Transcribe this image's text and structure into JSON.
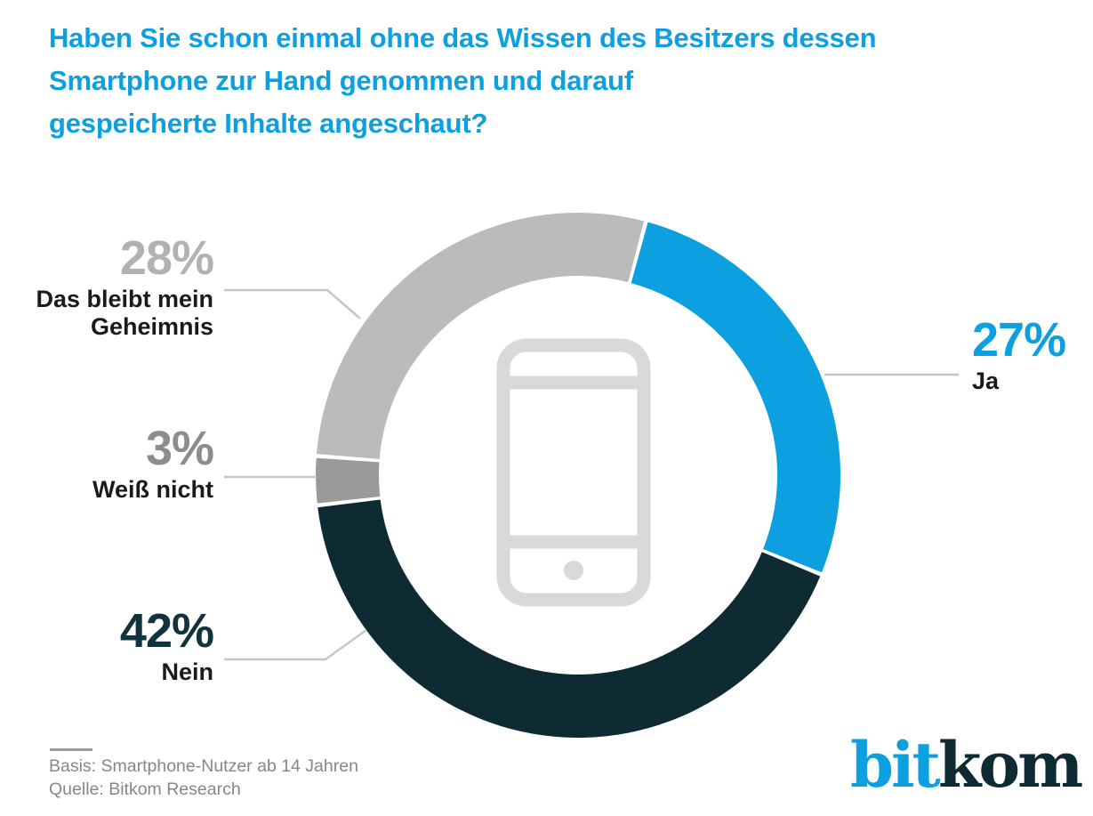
{
  "title": {
    "lines": [
      "Haben Sie schon einmal ohne das Wissen des Besitzers dessen",
      "Smartphone zur Hand genommen und darauf",
      "gespeicherte Inhalte angeschaut?"
    ]
  },
  "chart_data": {
    "type": "pie",
    "subtype": "donut",
    "title": "Haben Sie schon einmal ohne das Wissen des Besitzers dessen Smartphone zur Hand genommen und darauf gespeicherte Inhalte angeschaut?",
    "units": "percent",
    "total": 100,
    "start_angle_clockwise_from_top_deg": 15,
    "legend_position": "callout-labels",
    "center_icon": "smartphone",
    "slices": [
      {
        "key": "ja",
        "label": "Ja",
        "value": 27,
        "color": "#0da0e0"
      },
      {
        "key": "nein",
        "label": "Nein",
        "value": 42,
        "color": "#0e2a33"
      },
      {
        "key": "weiss-nicht",
        "label": "Weiß nicht",
        "value": 3,
        "color": "#9a9a9a"
      },
      {
        "key": "geheimnis",
        "label": "Das bleibt mein Geheimnis",
        "value": 28,
        "color": "#bbbbbb"
      }
    ]
  },
  "callouts": {
    "ja": {
      "percent": "27%",
      "text": "Ja",
      "percent_color": "#0da0e0"
    },
    "nein": {
      "percent": "42%",
      "text": "Nein",
      "percent_color": "#12323d"
    },
    "weiss_nicht": {
      "percent": "3%",
      "text": "Weiß nicht",
      "percent_color": "#8d8d8d"
    },
    "geheimnis": {
      "percent": "28%",
      "lines": [
        "Das bleibt mein",
        "Geheimnis"
      ],
      "percent_color": "#b2b2b2"
    }
  },
  "footer": {
    "basis": "Basis: Smartphone-Nutzer ab 14 Jahren",
    "quelle": "Quelle: Bitkom Research"
  },
  "logo": {
    "part1": "bit",
    "part2": "kom"
  },
  "colors": {
    "accent_blue": "#0da0e0",
    "dark_navy": "#0e2a33",
    "light_gray": "#bbbbbb",
    "mid_gray": "#9a9a9a",
    "phone_gray": "#d9d9d9",
    "leader_line": "#c6c6c6",
    "footer_gray": "#878787",
    "label_black": "#1a1a1a"
  }
}
